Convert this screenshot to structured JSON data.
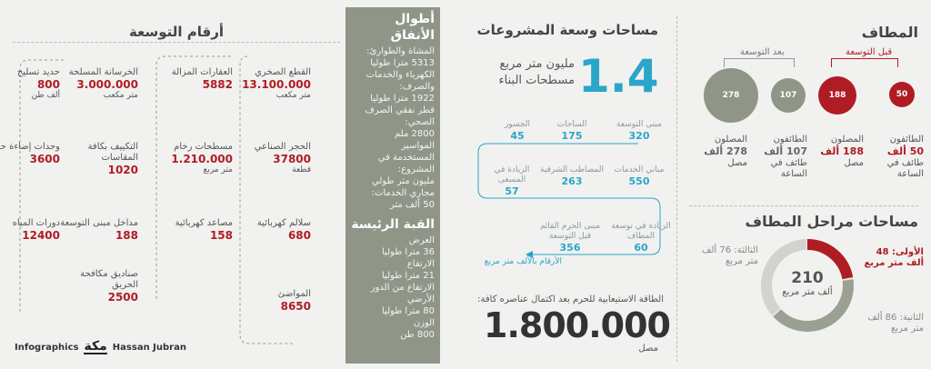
{
  "mataf": {
    "title": "المطاف",
    "before_label": "قبل التوسعة",
    "after_label": "بعد التوسعة",
    "circles": [
      {
        "value": "50",
        "color": "#b01c24",
        "caption": "الطائفون",
        "amount": "50 ألف",
        "unit": "طائف في الساعة"
      },
      {
        "value": "188",
        "color": "#b01c24",
        "caption": "المصلون",
        "amount": "188 ألف",
        "unit": "مصل"
      },
      {
        "value": "107",
        "color": "#8f9688",
        "caption": "الطائفون",
        "amount": "107 ألف",
        "unit": "طائف في الساعة"
      },
      {
        "value": "278",
        "color": "#8f9688",
        "caption": "المصلون",
        "amount": "278 ألف",
        "unit": "مصل"
      }
    ]
  },
  "phases": {
    "title": "مساحات مراحل المطاف",
    "center_value": "210",
    "center_unit": "ألف متر مربع",
    "first": "الأولى: 48 ألف متر مربع",
    "second": "الثانية: 86 ألف متر مربع",
    "third": "الثالثة: 76 ألف متر مربع",
    "segments": [
      48,
      86,
      76
    ]
  },
  "projects": {
    "title": "مساحات وسعة المشروعات",
    "big_number": "1.4",
    "big_caption": "مليون متر مربع مسطحات البناء",
    "items": [
      {
        "label": "مبنى التوسعة",
        "value": "320"
      },
      {
        "label": "الساحات",
        "value": "175"
      },
      {
        "label": "الجسور",
        "value": "45"
      },
      {
        "label": "مباني الخدمات",
        "value": "550"
      },
      {
        "label": "المصاطب الشرقية",
        "value": "263"
      },
      {
        "label": "الزيادة في المسعى",
        "value": "57"
      },
      {
        "label": "الزيادة في توسعة المطاف",
        "value": "60"
      },
      {
        "label": "مبنى الحرم القائم قبل التوسعة",
        "value": "356"
      }
    ],
    "note": "الأرقام بالألف متر مربع",
    "capacity_label": "الطاقة الاستيعابية للحرم بعد اكتمال عناصره كافة:",
    "capacity_value": "1.800.000",
    "capacity_unit": "مصل"
  },
  "tunnels": {
    "title": "أطوال الأنفاق",
    "text": [
      "المشاة والطوارئ:",
      "5313 مترا طوليا",
      "الكهرباء والخدمات",
      "والصرف:",
      "1922 مترا طوليا",
      "قطر نفقي الصرف",
      "الصحي:",
      "2800 ملم",
      "المواسير",
      "المستخدمة في",
      "المشروع:",
      "مليون متر طولي",
      "مجاري الخدمات:",
      "50 ألف متر"
    ],
    "dome_title": "القبة الرئيسة",
    "dome_text": [
      "العرض",
      "36 مترا طوليا",
      "الارتفاع",
      "21 مترا طوليا",
      "الارتفاع من الدور",
      "الأرضي",
      "80 مترا طوليا",
      "الوزن",
      "800 طن"
    ]
  },
  "expansion": {
    "title": "أرقام التوسعة",
    "items": [
      {
        "label": "القطع الصخري",
        "value": "13.100.000",
        "unit": "متر مكعب"
      },
      {
        "label": "العقارات المزالة",
        "value": "5882",
        "unit": ""
      },
      {
        "label": "الخرسانة المسلحة",
        "value": "3.000.000",
        "unit": "متر مكعب"
      },
      {
        "label": "حديد تسليح",
        "value": "800",
        "unit": "ألف طن"
      },
      {
        "label": "الحجر الصناعي",
        "value": "37800",
        "unit": "قطعة"
      },
      {
        "label": "مسطحات رخام",
        "value": "1.210.000",
        "unit": "متر مربع"
      },
      {
        "label": "التكييف بكافة المقاسات",
        "value": "1020",
        "unit": ""
      },
      {
        "label": "وحدات إضاءة حائطية",
        "value": "3600",
        "unit": ""
      },
      {
        "label": "سلالم كهربائية",
        "value": "680",
        "unit": ""
      },
      {
        "label": "مصاعد كهربائية",
        "value": "158",
        "unit": ""
      },
      {
        "label": "مداخل مبنى التوسعة",
        "value": "188",
        "unit": ""
      },
      {
        "label": "دورات المياه",
        "value": "12400",
        "unit": ""
      },
      {
        "label": "صناديق مكافحة الحريق",
        "value": "2500",
        "unit": ""
      },
      {
        "label": "المواضئ",
        "value": "8650",
        "unit": ""
      }
    ]
  },
  "credits": {
    "left": "Infographics",
    "logo": "مكة",
    "right": "Hassan Jubran"
  }
}
